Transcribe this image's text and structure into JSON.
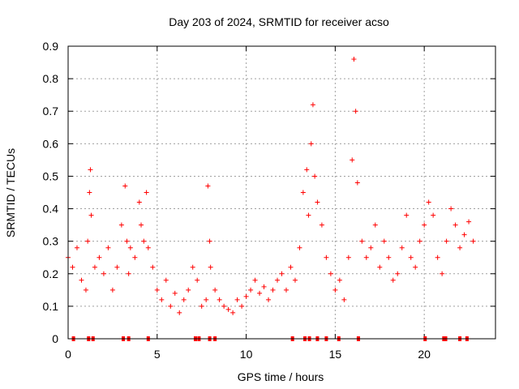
{
  "chart_data": {
    "type": "scatter",
    "title": "Day 203 of 2024, SRMTID for receiver acso",
    "xlabel": "GPS time / hours",
    "ylabel": "SRMTID / TECUs",
    "xlim": [
      0,
      24
    ],
    "ylim": [
      0,
      0.9
    ],
    "x_ticks": [
      0,
      5,
      10,
      15,
      20
    ],
    "x_tick_labels": [
      "0",
      "5",
      "10",
      "15",
      "20"
    ],
    "y_ticks": [
      0,
      0.1,
      0.2,
      0.3,
      0.4,
      0.5,
      0.6,
      0.7,
      0.8,
      0.9
    ],
    "y_tick_labels": [
      "0",
      "0.1",
      "0.2",
      "0.3",
      "0.4",
      "0.5",
      "0.6",
      "0.7",
      "0.8",
      "0.9"
    ],
    "grid": true,
    "marker": "+",
    "color": "#ff0000",
    "series": [
      {
        "name": "SRMTID",
        "x": [
          0.0,
          0.25,
          0.5,
          0.75,
          1.0,
          1.1,
          1.2,
          1.25,
          1.3,
          1.5,
          1.75,
          2.0,
          2.25,
          2.5,
          2.75,
          3.0,
          3.2,
          3.3,
          3.4,
          3.5,
          3.75,
          4.0,
          4.1,
          4.25,
          4.4,
          4.5,
          4.75,
          5.0,
          5.25,
          5.5,
          5.75,
          6.0,
          6.25,
          6.5,
          6.75,
          7.0,
          7.25,
          7.5,
          7.75,
          7.85,
          7.95,
          8.0,
          8.25,
          8.5,
          8.75,
          9.0,
          9.25,
          9.5,
          9.75,
          10.0,
          10.25,
          10.5,
          10.75,
          11.0,
          11.25,
          11.5,
          11.75,
          12.0,
          12.25,
          12.5,
          12.75,
          13.0,
          13.2,
          13.4,
          13.5,
          13.65,
          13.75,
          13.85,
          14.0,
          14.25,
          14.5,
          14.75,
          15.0,
          15.25,
          15.5,
          15.75,
          15.95,
          16.05,
          16.15,
          16.25,
          16.5,
          16.75,
          17.0,
          17.25,
          17.5,
          17.75,
          18.0,
          18.25,
          18.5,
          18.75,
          19.0,
          19.25,
          19.5,
          19.75,
          20.0,
          20.25,
          20.5,
          20.75,
          21.0,
          21.25,
          21.5,
          21.75,
          22.0,
          22.25,
          22.5,
          22.75
        ],
        "values": [
          0.25,
          0.22,
          0.28,
          0.18,
          0.15,
          0.3,
          0.45,
          0.52,
          0.38,
          0.22,
          0.25,
          0.2,
          0.28,
          0.15,
          0.22,
          0.35,
          0.47,
          0.3,
          0.2,
          0.28,
          0.25,
          0.42,
          0.35,
          0.3,
          0.45,
          0.28,
          0.22,
          0.15,
          0.12,
          0.18,
          0.1,
          0.14,
          0.08,
          0.12,
          0.15,
          0.22,
          0.18,
          0.1,
          0.12,
          0.47,
          0.3,
          0.22,
          0.15,
          0.12,
          0.1,
          0.09,
          0.08,
          0.12,
          0.1,
          0.13,
          0.15,
          0.18,
          0.14,
          0.16,
          0.12,
          0.15,
          0.18,
          0.2,
          0.15,
          0.22,
          0.18,
          0.28,
          0.45,
          0.52,
          0.38,
          0.6,
          0.72,
          0.5,
          0.42,
          0.35,
          0.25,
          0.2,
          0.15,
          0.18,
          0.12,
          0.25,
          0.55,
          0.86,
          0.7,
          0.48,
          0.3,
          0.25,
          0.28,
          0.35,
          0.22,
          0.3,
          0.25,
          0.18,
          0.2,
          0.28,
          0.38,
          0.25,
          0.22,
          0.3,
          0.35,
          0.42,
          0.38,
          0.25,
          0.2,
          0.3,
          0.4,
          0.35,
          0.28,
          0.32,
          0.36,
          0.3
        ],
        "flags_at_zero": [
          0.3,
          1.15,
          1.4,
          3.1,
          3.4,
          4.5,
          7.15,
          7.35,
          7.95,
          8.25,
          12.6,
          13.3,
          13.55,
          14.0,
          14.5,
          15.2,
          16.3,
          20.05,
          21.1,
          21.2,
          22.0,
          22.4
        ]
      }
    ]
  }
}
